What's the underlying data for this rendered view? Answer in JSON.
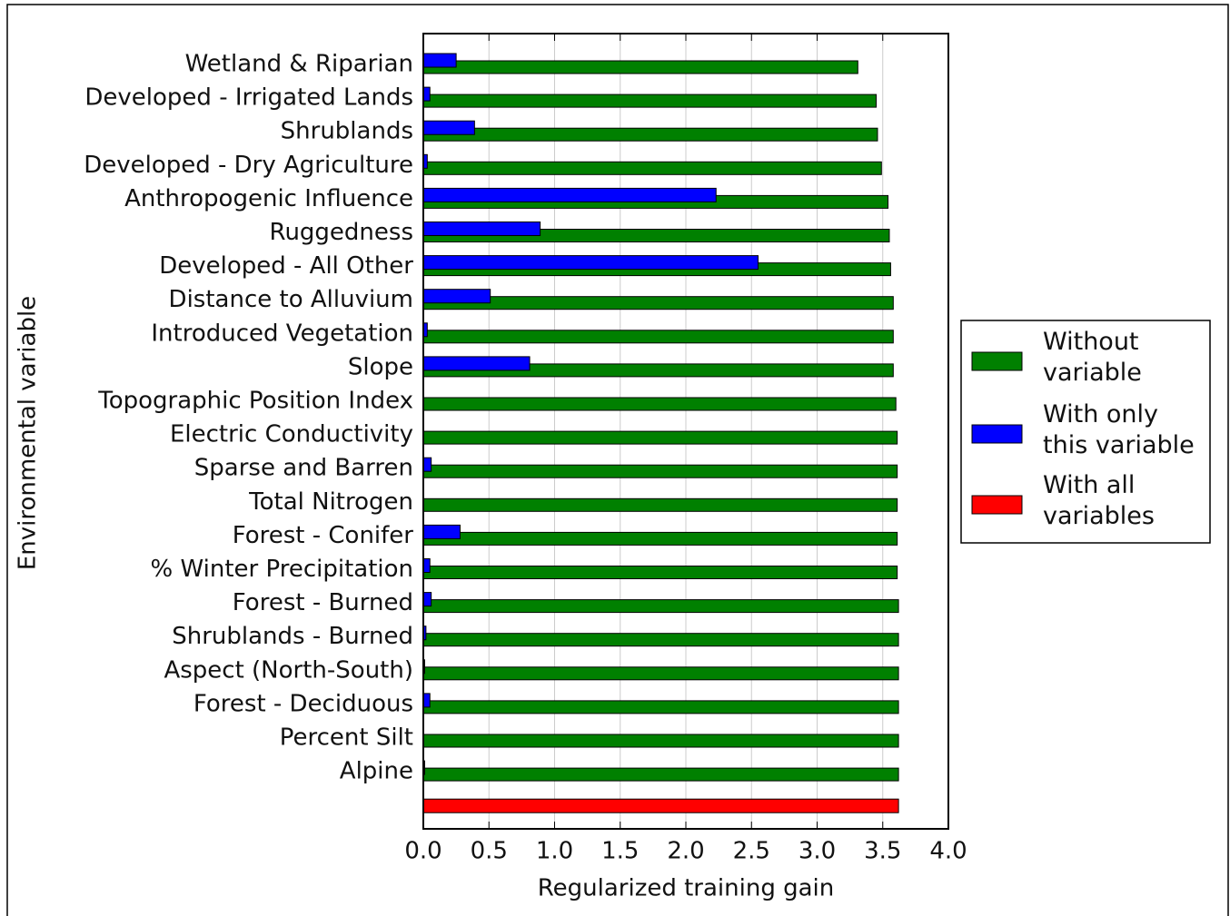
{
  "chart_data": {
    "type": "barh",
    "xlabel": "Regularized training gain",
    "ylabel": "Environmental variable",
    "categories": [
      "Wetland & Riparian",
      "Developed - Irrigated Lands",
      "Shrublands",
      "Developed - Dry Agriculture",
      "Anthropogenic Influence",
      "Ruggedness",
      "Developed - All Other",
      "Distance to Alluvium",
      "Introduced Vegetation",
      "Slope",
      "Topographic Position Index",
      "Electric Conductivity",
      "Sparse and Barren",
      "Total Nitrogen",
      "Forest - Conifer",
      "% Winter Precipitation",
      "Forest - Burned",
      "Shrublands - Burned",
      "Aspect (North-South)",
      "Forest - Deciduous",
      "Percent Silt",
      "Alpine",
      null
    ],
    "series": [
      {
        "name": "Without variable",
        "color": "#008000",
        "values": [
          3.31,
          3.45,
          3.46,
          3.49,
          3.54,
          3.55,
          3.56,
          3.58,
          3.58,
          3.58,
          3.6,
          3.61,
          3.61,
          3.61,
          3.61,
          3.61,
          3.62,
          3.62,
          3.62,
          3.62,
          3.62,
          3.62,
          null
        ]
      },
      {
        "name": "With only this variable",
        "color": "#0000ff",
        "values": [
          0.25,
          0.05,
          0.39,
          0.03,
          2.23,
          0.89,
          2.55,
          0.51,
          0.03,
          0.81,
          0,
          0,
          0.06,
          0,
          0.28,
          0.05,
          0.06,
          0.02,
          0.01,
          0.05,
          0,
          0.01,
          null
        ]
      },
      {
        "name": "With all variables",
        "color": "#ff0000",
        "values": [
          null,
          null,
          null,
          null,
          null,
          null,
          null,
          null,
          null,
          null,
          null,
          null,
          null,
          null,
          null,
          null,
          null,
          null,
          null,
          null,
          null,
          null,
          3.62
        ]
      }
    ],
    "xlim": [
      0,
      4
    ],
    "xticks": [
      {
        "value": 0,
        "label": "0.0"
      },
      0.5,
      {
        "value": 1,
        "label": "1.0"
      },
      1.5,
      {
        "value": 2,
        "label": "2.0"
      },
      2.5,
      {
        "value": 3,
        "label": "3.0"
      },
      3.5,
      {
        "value": 4,
        "label": "4.0"
      }
    ],
    "grid": true,
    "legend": "right"
  }
}
